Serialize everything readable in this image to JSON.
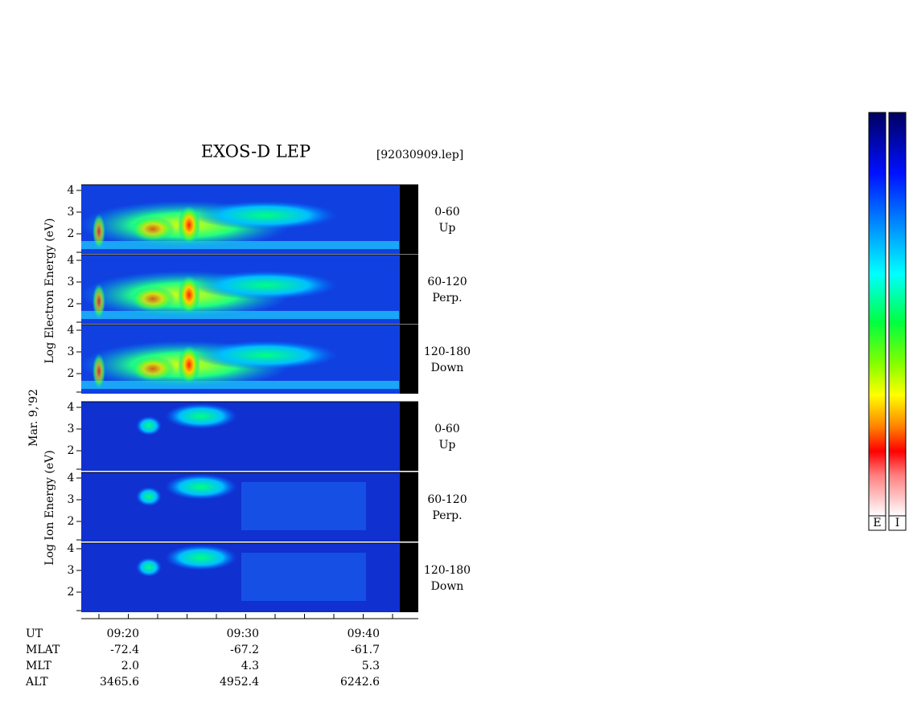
{
  "title": "EXOS-D LEP",
  "file": "[92030909.lep]",
  "date": "Mar. 9,'92",
  "electron": {
    "ylabel": "Log  Electron  Energy  (eV)",
    "panels": [
      {
        "yticks": [
          4,
          3,
          2
        ],
        "angle": "0-60",
        "direction": "Up"
      },
      {
        "yticks": [
          4,
          3,
          2
        ],
        "angle": "60-120",
        "direction": "Perp."
      },
      {
        "yticks": [
          4,
          3,
          2
        ],
        "angle": "120-180",
        "direction": "Down"
      }
    ]
  },
  "ion": {
    "ylabel": "Log  Ion  Energy  (eV)",
    "panels": [
      {
        "yticks": [
          4,
          3,
          2
        ],
        "angle": "0-60",
        "direction": "Up"
      },
      {
        "yticks": [
          4,
          3,
          2
        ],
        "angle": "60-120",
        "direction": "Perp."
      },
      {
        "yticks": [
          4,
          3,
          2
        ],
        "angle": "120-180",
        "direction": "Down"
      }
    ]
  },
  "footer": [
    [
      "UT",
      "09:20",
      "09:30",
      "09:40"
    ],
    [
      "MLAT",
      "-72.4",
      "-67.2",
      "-61.7"
    ],
    [
      "MLT",
      "2.0",
      "4.3",
      "5.3"
    ],
    [
      "ALT",
      "3465.6",
      "4952.4",
      "6242.6"
    ]
  ],
  "colorbars": [
    "E",
    "I"
  ]
}
